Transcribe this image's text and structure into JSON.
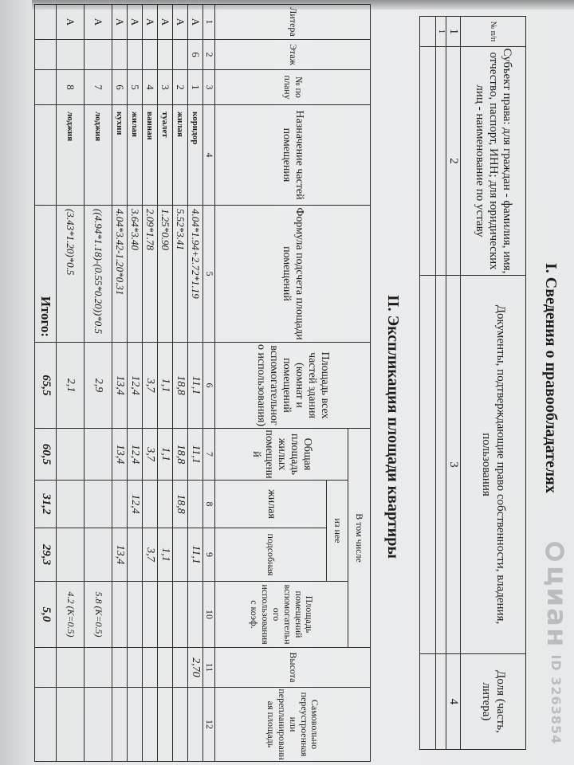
{
  "section1": {
    "title": "I. Сведения о правообладателях",
    "headers": [
      "№ п/п",
      "Субъект права: для граждан - фамилия, имя, отчество, паспорт, ИНН; для юридических лиц - наименование по уставу",
      "Документы, подтверждающие право собственности, владения, пользования",
      "Доля (часть, литера)"
    ],
    "col_numbers": [
      "1",
      "2",
      "3",
      "4"
    ],
    "rows": [
      [
        "1",
        "",
        "",
        ""
      ],
      [
        "",
        "",
        "",
        ""
      ]
    ]
  },
  "section2": {
    "title": "II. Экспликация площади квартиры",
    "headers": {
      "litera": "Литера",
      "floor": "Этаж",
      "plan_no": "№ по плану",
      "purpose": "Назначение частей помещения",
      "formula": "Формула подсчета площади помещений",
      "total_area": "Площадь всех частей здания (комнат и помещений вспомогательного использования)",
      "including": "В том числе",
      "living_total": "Общая площадь жилых помещений",
      "of_which": "из нее",
      "living": "жилая",
      "auxiliary": "подсобная",
      "aux_coef": "Площадь помещений вспомогательного использования с коэф.",
      "height": "Высота",
      "unauthorized": "Самовольно переустроенная или перепланированная площадь"
    },
    "col_numbers": [
      "1",
      "2",
      "3",
      "4",
      "5",
      "6",
      "7",
      "8",
      "9",
      "10",
      "11",
      "12"
    ],
    "rows": [
      {
        "litera": "А",
        "floor": "6",
        "plan": "1",
        "name": "коридор",
        "formula": "4.04*1.94+2.72*1.19",
        "total": "11,1",
        "living_total": "11,1",
        "living": "",
        "aux": "11,1",
        "coef": "",
        "height": "2,70"
      },
      {
        "litera": "А",
        "floor": "",
        "plan": "2",
        "name": "жилая",
        "formula": "5.52*3.41",
        "total": "18,8",
        "living_total": "18,8",
        "living": "18,8",
        "aux": "",
        "coef": "",
        "height": ""
      },
      {
        "litera": "А",
        "floor": "",
        "plan": "3",
        "name": "туалет",
        "formula": "1.25*0.90",
        "total": "1,1",
        "living_total": "1,1",
        "living": "",
        "aux": "1,1",
        "coef": "",
        "height": ""
      },
      {
        "litera": "А",
        "floor": "",
        "plan": "4",
        "name": "ванная",
        "formula": "2.09*1.78",
        "total": "3,7",
        "living_total": "3,7",
        "living": "",
        "aux": "3,7",
        "coef": "",
        "height": ""
      },
      {
        "litera": "А",
        "floor": "",
        "plan": "5",
        "name": "жилая",
        "formula": "3.64*3.40",
        "total": "12,4",
        "living_total": "12,4",
        "living": "12,4",
        "aux": "",
        "coef": "",
        "height": ""
      },
      {
        "litera": "А",
        "floor": "",
        "plan": "6",
        "name": "кухня",
        "formula": "4.04*3.42-1.20*0.31",
        "total": "13,4",
        "living_total": "13,4",
        "living": "",
        "aux": "13,4",
        "coef": "",
        "height": ""
      },
      {
        "litera": "А",
        "floor": "",
        "plan": "7",
        "name": "лоджия",
        "formula": "((4.94*1.18)-(0.55*0.20))*0.5",
        "total": "2,9",
        "living_total": "",
        "living": "",
        "aux": "",
        "coef": "5.8 (K=0.5)",
        "height": ""
      },
      {
        "litera": "А",
        "floor": "",
        "plan": "8",
        "name": "лоджия",
        "formula": "(3.43*1.20)*0.5",
        "total": "2,1",
        "living_total": "",
        "living": "",
        "aux": "",
        "coef": "4.2 (K=0.5)",
        "height": ""
      }
    ],
    "totals": {
      "label": "Итого:",
      "total": "65,5",
      "living_total": "60,5",
      "living": "31,2",
      "aux": "29,3",
      "coef": "5,0"
    }
  },
  "watermark": {
    "logo": "циан",
    "id": "ID 3263854"
  }
}
